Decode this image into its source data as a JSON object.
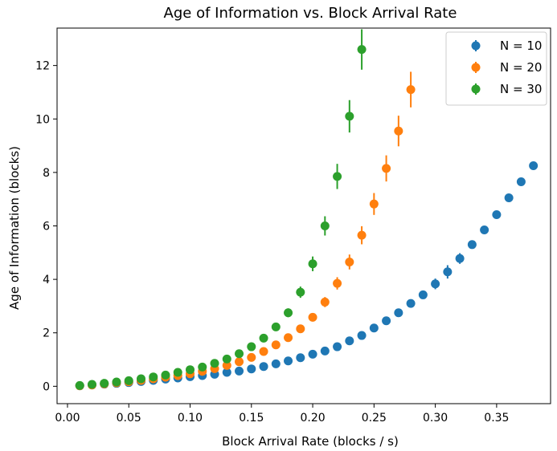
{
  "chart_data": {
    "type": "scatter",
    "title": "Age of Information vs. Block Arrival Rate",
    "xlabel": "Block Arrival Rate (blocks / s)",
    "ylabel": "Age of Information (blocks)",
    "xlim": [
      -0.0085,
      0.394
    ],
    "ylim": [
      -0.65,
      13.4
    ],
    "xticks": [
      0.0,
      0.05,
      0.1,
      0.15,
      0.2,
      0.25,
      0.3,
      0.35
    ],
    "xtick_labels": [
      "0.00",
      "0.05",
      "0.10",
      "0.15",
      "0.20",
      "0.25",
      "0.30",
      "0.35"
    ],
    "yticks": [
      0,
      2,
      4,
      6,
      8,
      10,
      12
    ],
    "ytick_labels": [
      "0",
      "2",
      "4",
      "6",
      "8",
      "10",
      "12"
    ],
    "grid": false,
    "legend_position": "top-right",
    "series": [
      {
        "name": "N = 10",
        "color": "#1f77b4",
        "x": [
          0.01,
          0.02,
          0.03,
          0.04,
          0.05,
          0.06,
          0.07,
          0.08,
          0.09,
          0.1,
          0.11,
          0.12,
          0.13,
          0.14,
          0.15,
          0.16,
          0.17,
          0.18,
          0.19,
          0.2,
          0.21,
          0.22,
          0.23,
          0.24,
          0.25,
          0.26,
          0.27,
          0.28,
          0.29,
          0.3,
          0.31,
          0.32,
          0.33,
          0.34,
          0.35,
          0.36,
          0.37,
          0.38
        ],
        "y": [
          0.02,
          0.05,
          0.08,
          0.11,
          0.14,
          0.18,
          0.22,
          0.27,
          0.31,
          0.36,
          0.4,
          0.45,
          0.52,
          0.57,
          0.65,
          0.74,
          0.84,
          0.95,
          1.07,
          1.2,
          1.32,
          1.48,
          1.7,
          1.9,
          2.18,
          2.45,
          2.75,
          3.1,
          3.42,
          3.83,
          4.28,
          4.78,
          5.3,
          5.85,
          6.42,
          7.05,
          7.65,
          8.25
        ],
        "err": [
          0.05,
          0.05,
          0.05,
          0.05,
          0.05,
          0.05,
          0.05,
          0.05,
          0.05,
          0.05,
          0.05,
          0.05,
          0.05,
          0.05,
          0.05,
          0.05,
          0.05,
          0.05,
          0.05,
          0.05,
          0.05,
          0.05,
          0.05,
          0.05,
          0.15,
          0.15,
          0.15,
          0.15,
          0.15,
          0.2,
          0.25,
          0.2,
          0.15,
          0.1,
          0.1,
          0.1,
          0.1,
          0.1
        ]
      },
      {
        "name": "N = 20",
        "color": "#ff7f0e",
        "x": [
          0.01,
          0.02,
          0.03,
          0.04,
          0.05,
          0.06,
          0.07,
          0.08,
          0.09,
          0.1,
          0.11,
          0.12,
          0.13,
          0.14,
          0.15,
          0.16,
          0.17,
          0.18,
          0.19,
          0.2,
          0.21,
          0.22,
          0.23,
          0.24,
          0.25,
          0.26,
          0.27,
          0.28
        ],
        "y": [
          0.02,
          0.05,
          0.09,
          0.13,
          0.17,
          0.22,
          0.28,
          0.34,
          0.4,
          0.47,
          0.56,
          0.66,
          0.78,
          0.92,
          1.08,
          1.3,
          1.55,
          1.82,
          2.15,
          2.58,
          3.15,
          3.85,
          4.65,
          5.65,
          6.82,
          8.15,
          9.55,
          11.1
        ]
      },
      {
        "name": "N = 30",
        "color": "#2ca02c",
        "x": [
          0.01,
          0.02,
          0.03,
          0.04,
          0.05,
          0.06,
          0.07,
          0.08,
          0.09,
          0.1,
          0.11,
          0.12,
          0.13,
          0.14,
          0.15,
          0.16,
          0.17,
          0.18,
          0.19,
          0.2,
          0.21,
          0.22,
          0.23,
          0.24
        ],
        "y": [
          0.03,
          0.07,
          0.11,
          0.16,
          0.21,
          0.28,
          0.35,
          0.42,
          0.52,
          0.62,
          0.72,
          0.86,
          1.02,
          1.22,
          1.48,
          1.8,
          2.22,
          2.75,
          3.52,
          4.58,
          6.0,
          7.85,
          10.1,
          12.6
        ]
      }
    ]
  }
}
